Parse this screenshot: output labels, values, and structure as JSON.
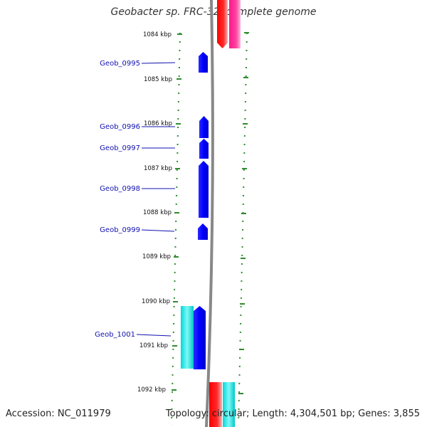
{
  "title": "Geobacter sp. FRC-32, complete genome",
  "accession": "Accession: NC_011979",
  "summary": "Topology: circular; Length: 4,304,501 bp; Genes: 3,855",
  "scale_labels": [
    "1084 kbp",
    "1085 kbp",
    "1086 kbp",
    "1087 kbp",
    "1088 kbp",
    "1089 kbp",
    "1090 kbp",
    "1091 kbp",
    "1092 kbp"
  ],
  "gene_labels": [
    "Geob_0995",
    "Geob_0996",
    "Geob_0997",
    "Geob_0998",
    "Geob_0999",
    "Geob_1001"
  ],
  "colors": {
    "label_blue": "#1010b0",
    "gene_blue": "#0000ff",
    "gene_cyan": "#00e0e0",
    "gene_red": "#ff0000",
    "gene_pink": "#ff1493",
    "tick_green": "#2e8b2e",
    "backbone_gray": "#888888"
  }
}
